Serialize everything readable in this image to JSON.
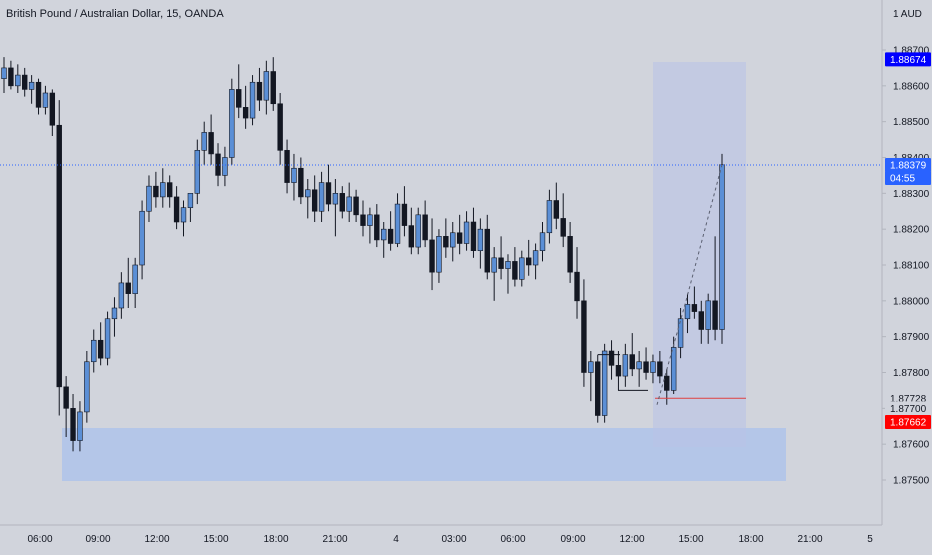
{
  "title": "British Pound / Australian Dollar, 15, OANDA",
  "currency_label": "1 AUD",
  "colors": {
    "background": "#d1d4dc",
    "up_body": "#5b8fd6",
    "down_body": "#131722",
    "wick": "#131722",
    "zone": "#a9c2ec",
    "projection_box": "#b9c3e6",
    "last_price": "#2962ff",
    "high_marker": "#0000ff",
    "low_marker": "#ff0000",
    "stop_line": "#e04040"
  },
  "chart_data": {
    "type": "candlestick",
    "title": "British Pound / Australian Dollar, 15, OANDA",
    "ylim": [
      1.8746,
      1.8781
    ],
    "y_ticks": [
      "1.87500",
      "1.87600",
      "1.87700",
      "1.87800",
      "1.87900",
      "1.88000",
      "1.88100",
      "1.88200",
      "1.88300",
      "1.88400",
      "1.88500",
      "1.88600",
      "1.88700"
    ],
    "y_tick_values": [
      1.875,
      1.876,
      1.877,
      1.878,
      1.879,
      1.88,
      1.881,
      1.882,
      1.883,
      1.884,
      1.885,
      1.886,
      1.887
    ],
    "x_ticks": [
      "06:00",
      "09:00",
      "12:00",
      "15:00",
      "18:00",
      "21:00",
      "4",
      "03:00",
      "06:00",
      "09:00",
      "12:00",
      "15:00",
      "18:00",
      "21:00",
      "5"
    ],
    "price_labels": [
      {
        "value": "1.88674",
        "kind": "high"
      },
      {
        "value": "1.88379",
        "kind": "last"
      },
      {
        "value": "04:55",
        "kind": "countdown"
      },
      {
        "value": "1.87728",
        "kind": "level"
      },
      {
        "value": "1.87700",
        "kind": "level2"
      },
      {
        "value": "1.87662",
        "kind": "low"
      }
    ],
    "candles": [
      [
        1.8862,
        1.8868,
        1.8858,
        1.8865
      ],
      [
        1.8865,
        1.8867,
        1.8859,
        1.886
      ],
      [
        1.886,
        1.8866,
        1.8858,
        1.8863
      ],
      [
        1.8863,
        1.8865,
        1.8857,
        1.8859
      ],
      [
        1.8859,
        1.8863,
        1.8855,
        1.8861
      ],
      [
        1.8861,
        1.8862,
        1.8852,
        1.8854
      ],
      [
        1.8854,
        1.886,
        1.8852,
        1.8858
      ],
      [
        1.8858,
        1.8859,
        1.8846,
        1.8849
      ],
      [
        1.8849,
        1.8856,
        1.8768,
        1.8776
      ],
      [
        1.8776,
        1.8779,
        1.8762,
        1.877
      ],
      [
        1.877,
        1.8774,
        1.8758,
        1.8761
      ],
      [
        1.8761,
        1.8772,
        1.8758,
        1.8769
      ],
      [
        1.8769,
        1.8786,
        1.8766,
        1.8783
      ],
      [
        1.8783,
        1.8792,
        1.878,
        1.8789
      ],
      [
        1.8789,
        1.8794,
        1.8782,
        1.8784
      ],
      [
        1.8784,
        1.8797,
        1.8782,
        1.8795
      ],
      [
        1.8795,
        1.8801,
        1.879,
        1.8798
      ],
      [
        1.8798,
        1.8808,
        1.8795,
        1.8805
      ],
      [
        1.8805,
        1.8812,
        1.8798,
        1.8802
      ],
      [
        1.8802,
        1.8812,
        1.8798,
        1.881
      ],
      [
        1.881,
        1.8828,
        1.8806,
        1.8825
      ],
      [
        1.8825,
        1.8835,
        1.8822,
        1.8832
      ],
      [
        1.8832,
        1.8836,
        1.8826,
        1.8829
      ],
      [
        1.8829,
        1.8837,
        1.8826,
        1.8833
      ],
      [
        1.8833,
        1.8835,
        1.8826,
        1.8829
      ],
      [
        1.8829,
        1.8832,
        1.882,
        1.8822
      ],
      [
        1.8822,
        1.8828,
        1.8818,
        1.8826
      ],
      [
        1.8826,
        1.883,
        1.8822,
        1.883
      ],
      [
        1.883,
        1.8845,
        1.8827,
        1.8842
      ],
      [
        1.8842,
        1.885,
        1.8838,
        1.8847
      ],
      [
        1.8847,
        1.8852,
        1.8838,
        1.8841
      ],
      [
        1.8841,
        1.8844,
        1.8832,
        1.8835
      ],
      [
        1.8835,
        1.8843,
        1.8832,
        1.884
      ],
      [
        1.884,
        1.8862,
        1.8838,
        1.8859
      ],
      [
        1.8859,
        1.8866,
        1.8851,
        1.8854
      ],
      [
        1.8854,
        1.886,
        1.8848,
        1.8851
      ],
      [
        1.8851,
        1.8863,
        1.8849,
        1.8861
      ],
      [
        1.8861,
        1.8865,
        1.8853,
        1.8856
      ],
      [
        1.8856,
        1.8867,
        1.8852,
        1.8864
      ],
      [
        1.8864,
        1.8868,
        1.8853,
        1.8855
      ],
      [
        1.8855,
        1.8858,
        1.8838,
        1.8842
      ],
      [
        1.8842,
        1.8845,
        1.883,
        1.8833
      ],
      [
        1.8833,
        1.8841,
        1.8828,
        1.8837
      ],
      [
        1.8837,
        1.884,
        1.8827,
        1.8829
      ],
      [
        1.8829,
        1.8834,
        1.8823,
        1.8831
      ],
      [
        1.8831,
        1.8835,
        1.8822,
        1.8825
      ],
      [
        1.8825,
        1.8836,
        1.8822,
        1.8833
      ],
      [
        1.8833,
        1.8838,
        1.8825,
        1.8827
      ],
      [
        1.8827,
        1.8834,
        1.8818,
        1.883
      ],
      [
        1.883,
        1.8832,
        1.8823,
        1.8825
      ],
      [
        1.8825,
        1.8833,
        1.8822,
        1.8829
      ],
      [
        1.8829,
        1.8831,
        1.8822,
        1.8824
      ],
      [
        1.8824,
        1.8828,
        1.8818,
        1.8821
      ],
      [
        1.8821,
        1.8826,
        1.8816,
        1.8824
      ],
      [
        1.8824,
        1.8827,
        1.8815,
        1.8817
      ],
      [
        1.8817,
        1.8822,
        1.8812,
        1.882
      ],
      [
        1.882,
        1.8825,
        1.8814,
        1.8816
      ],
      [
        1.8816,
        1.883,
        1.8815,
        1.8827
      ],
      [
        1.8827,
        1.8832,
        1.8818,
        1.8821
      ],
      [
        1.8821,
        1.8826,
        1.8813,
        1.8815
      ],
      [
        1.8815,
        1.8826,
        1.8813,
        1.8824
      ],
      [
        1.8824,
        1.8828,
        1.8815,
        1.8817
      ],
      [
        1.8817,
        1.8823,
        1.8803,
        1.8808
      ],
      [
        1.8808,
        1.882,
        1.8805,
        1.8818
      ],
      [
        1.8818,
        1.8823,
        1.8812,
        1.8815
      ],
      [
        1.8815,
        1.8822,
        1.8811,
        1.8819
      ],
      [
        1.8819,
        1.8824,
        1.8813,
        1.8816
      ],
      [
        1.8816,
        1.8825,
        1.8814,
        1.8822
      ],
      [
        1.8822,
        1.8826,
        1.8812,
        1.8814
      ],
      [
        1.8814,
        1.8823,
        1.8809,
        1.882
      ],
      [
        1.882,
        1.8824,
        1.8806,
        1.8808
      ],
      [
        1.8808,
        1.8815,
        1.88,
        1.8812
      ],
      [
        1.8812,
        1.8818,
        1.8806,
        1.8809
      ],
      [
        1.8809,
        1.8813,
        1.8802,
        1.8811
      ],
      [
        1.8811,
        1.8815,
        1.8804,
        1.8806
      ],
      [
        1.8806,
        1.8814,
        1.8804,
        1.8812
      ],
      [
        1.8812,
        1.8817,
        1.8807,
        1.881
      ],
      [
        1.881,
        1.8816,
        1.8806,
        1.8814
      ],
      [
        1.8814,
        1.8822,
        1.8811,
        1.8819
      ],
      [
        1.8819,
        1.8831,
        1.8816,
        1.8828
      ],
      [
        1.8828,
        1.8833,
        1.882,
        1.8823
      ],
      [
        1.8823,
        1.883,
        1.8815,
        1.8818
      ],
      [
        1.8818,
        1.8822,
        1.8805,
        1.8808
      ],
      [
        1.8808,
        1.8815,
        1.8795,
        1.88
      ],
      [
        1.88,
        1.8806,
        1.8776,
        1.878
      ],
      [
        1.878,
        1.8786,
        1.8772,
        1.8783
      ],
      [
        1.8783,
        1.8785,
        1.8766,
        1.8768
      ],
      [
        1.8768,
        1.8788,
        1.8766,
        1.8786
      ],
      [
        1.8786,
        1.8789,
        1.8778,
        1.8782
      ],
      [
        1.8782,
        1.8786,
        1.8775,
        1.8779
      ],
      [
        1.8779,
        1.8788,
        1.8776,
        1.8785
      ],
      [
        1.8785,
        1.8791,
        1.8779,
        1.8781
      ],
      [
        1.8781,
        1.8786,
        1.8776,
        1.8783
      ],
      [
        1.8783,
        1.8787,
        1.8778,
        1.878
      ],
      [
        1.878,
        1.8785,
        1.8777,
        1.8783
      ],
      [
        1.8783,
        1.8786,
        1.8777,
        1.8779
      ],
      [
        1.8779,
        1.8781,
        1.8771,
        1.8775
      ],
      [
        1.8775,
        1.879,
        1.8774,
        1.8787
      ],
      [
        1.8787,
        1.8798,
        1.8784,
        1.8795
      ],
      [
        1.8795,
        1.8802,
        1.8791,
        1.8799
      ],
      [
        1.8799,
        1.8804,
        1.8795,
        1.8797
      ],
      [
        1.8797,
        1.88,
        1.8788,
        1.8792
      ],
      [
        1.8792,
        1.8802,
        1.8788,
        1.88
      ],
      [
        1.88,
        1.8818,
        1.8789,
        1.8792
      ],
      [
        1.8792,
        1.8841,
        1.8788,
        1.8838
      ]
    ]
  }
}
